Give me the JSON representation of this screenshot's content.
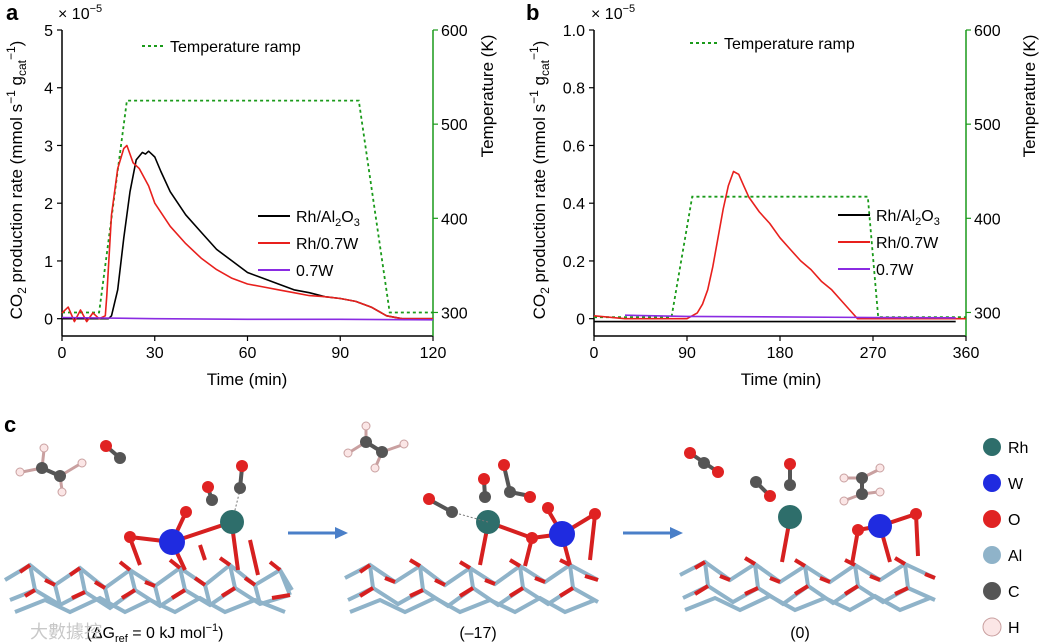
{
  "chart_data": [
    {
      "type": "line",
      "panel": "a",
      "multiplier_label": "× 10",
      "multiplier_exp": "−5",
      "xlabel": "Time (min)",
      "ylabel_main": "CO",
      "ylabel_sub": "2",
      "ylabel_rest": " production rate (mmol s",
      "ylabel_exp1": "−1",
      "ylabel_g": " g",
      "ylabel_cat": "cat",
      "ylabel_exp2": "−1",
      "ylabel_close": ")",
      "y2label": "Temperature (K)",
      "xlim": [
        0,
        120
      ],
      "ylim": [
        -0.3,
        5
      ],
      "y2lim": [
        275,
        600
      ],
      "x_ticks": [
        0,
        30,
        60,
        90,
        120
      ],
      "y_ticks": [
        0,
        1,
        2,
        3,
        4,
        5
      ],
      "y2_ticks": [
        300,
        400,
        500,
        600
      ],
      "legend": [
        "Rh/Al2O3",
        "Rh/0.7W",
        "0.7W"
      ],
      "legend_ramp": "Temperature ramp",
      "series": [
        {
          "name": "Rh/Al2O3",
          "color": "#000000",
          "x": [
            0,
            10,
            15,
            16,
            18,
            20,
            22,
            24,
            26,
            27,
            28,
            29,
            30,
            32,
            35,
            40,
            45,
            50,
            55,
            60,
            65,
            70,
            75,
            80,
            85,
            90,
            95,
            100,
            105,
            110,
            115,
            120
          ],
          "y": [
            0,
            0,
            0,
            0.05,
            0.5,
            1.4,
            2.2,
            2.75,
            2.88,
            2.85,
            2.9,
            2.85,
            2.8,
            2.55,
            2.2,
            1.8,
            1.5,
            1.2,
            1.0,
            0.8,
            0.7,
            0.6,
            0.5,
            0.45,
            0.38,
            0.35,
            0.3,
            0.2,
            0.05,
            0.0,
            0.0,
            0.0
          ]
        },
        {
          "name": "Rh/0.7W",
          "color": "#e8201d",
          "x": [
            0,
            2,
            4,
            6,
            8,
            10,
            12,
            14,
            14.5,
            16,
            18,
            20,
            21,
            22,
            23,
            25,
            28,
            30,
            35,
            40,
            45,
            50,
            55,
            60,
            65,
            70,
            75,
            80,
            85,
            90,
            95,
            100,
            105,
            110,
            115,
            120
          ],
          "y": [
            0.1,
            0.2,
            -0.05,
            0.15,
            -0.05,
            0.1,
            0.0,
            0.05,
            0.4,
            1.8,
            2.6,
            2.95,
            3.0,
            2.85,
            2.7,
            2.6,
            2.3,
            2.0,
            1.6,
            1.3,
            1.05,
            0.85,
            0.7,
            0.6,
            0.55,
            0.5,
            0.45,
            0.4,
            0.38,
            0.35,
            0.3,
            0.2,
            0.05,
            0.0,
            0.0,
            0.0
          ]
        },
        {
          "name": "0.7W",
          "color": "#8a2be2",
          "x": [
            0,
            30,
            60,
            90,
            120
          ],
          "y": [
            0.02,
            0.0,
            -0.01,
            -0.01,
            -0.02
          ]
        }
      ],
      "temperature_ramp": {
        "name": "Temperature ramp",
        "color": "#1a9a1a",
        "x": [
          0,
          12,
          21,
          96,
          106,
          120
        ],
        "y": [
          300,
          300,
          525,
          525,
          300,
          300
        ]
      }
    },
    {
      "type": "line",
      "panel": "b",
      "multiplier_label": "× 10",
      "multiplier_exp": "−5",
      "xlabel": "Time (min)",
      "ylabel_main": "CO",
      "ylabel_sub": "2",
      "ylabel_rest": " production rate (mmol s",
      "ylabel_exp1": "−1",
      "ylabel_g": " g",
      "ylabel_cat": "cat",
      "ylabel_exp2": "−1",
      "ylabel_close": ")",
      "y2label": "Temperature (K)",
      "xlim": [
        0,
        360
      ],
      "ylim": [
        -0.06,
        1.0
      ],
      "y2lim": [
        275,
        600
      ],
      "x_ticks": [
        0,
        90,
        180,
        270,
        360
      ],
      "y_ticks": [
        0,
        0.2,
        0.4,
        0.6,
        0.8,
        1.0
      ],
      "y_tick_labels": [
        "0",
        "0.2",
        "0.4",
        "0.6",
        "0.8",
        "1.0"
      ],
      "y2_ticks": [
        300,
        400,
        500,
        600
      ],
      "legend": [
        "Rh/Al2O3",
        "Rh/0.7W",
        "0.7W"
      ],
      "legend_ramp": "Temperature ramp",
      "series": [
        {
          "name": "Rh/Al2O3",
          "color": "#000000",
          "x": [
            0,
            30,
            60,
            90,
            120,
            150,
            180,
            210,
            240,
            270,
            300,
            330,
            350
          ],
          "y": [
            -0.01,
            -0.01,
            -0.01,
            -0.01,
            -0.01,
            -0.01,
            -0.01,
            -0.01,
            -0.01,
            -0.01,
            -0.01,
            -0.01,
            -0.01
          ]
        },
        {
          "name": "Rh/0.7W",
          "color": "#e8201d",
          "x": [
            0,
            30,
            60,
            90,
            100,
            105,
            110,
            115,
            120,
            125,
            130,
            135,
            140,
            145,
            150,
            160,
            170,
            180,
            190,
            200,
            210,
            220,
            230,
            240,
            250,
            255,
            260,
            270,
            300,
            330,
            360
          ],
          "y": [
            0.01,
            0.0,
            0.0,
            0.0,
            0.02,
            0.05,
            0.1,
            0.18,
            0.28,
            0.38,
            0.46,
            0.51,
            0.5,
            0.46,
            0.42,
            0.37,
            0.33,
            0.28,
            0.24,
            0.2,
            0.17,
            0.13,
            0.1,
            0.06,
            0.02,
            0.0,
            0.0,
            0.0,
            0.0,
            0.0,
            0.0
          ]
        },
        {
          "name": "0.7W",
          "color": "#8a2be2",
          "x": [
            30,
            90,
            180,
            270,
            350
          ],
          "y": [
            0.012,
            0.008,
            0.006,
            0.004,
            0.003
          ]
        }
      ],
      "temperature_ramp": {
        "name": "Temperature ramp",
        "color": "#1a9a1a",
        "x": [
          0,
          75,
          95,
          265,
          275,
          360
        ],
        "y": [
          295,
          295,
          423,
          423,
          295,
          295
        ]
      }
    }
  ],
  "panels": {
    "a": "a",
    "b": "b",
    "c": "c"
  },
  "panel_c": {
    "captions": [
      {
        "open": "(ΔG",
        "sub": "ref",
        "rest": " = 0 kJ mol",
        "sup": "−1",
        "close": ")"
      },
      {
        "text": "(–17)"
      },
      {
        "text": "(0)"
      }
    ],
    "legend": [
      {
        "label": "Rh",
        "color": "#2e6e6b"
      },
      {
        "label": "W",
        "color": "#1f2be0"
      },
      {
        "label": "O",
        "color": "#e02222"
      },
      {
        "label": "Al",
        "color": "#8fb3c9"
      },
      {
        "label": "C",
        "color": "#555555"
      },
      {
        "label": "H",
        "color": "#fbe6e6"
      }
    ],
    "arrow_color": "#4a7fc8",
    "watermark": "大數據控"
  }
}
